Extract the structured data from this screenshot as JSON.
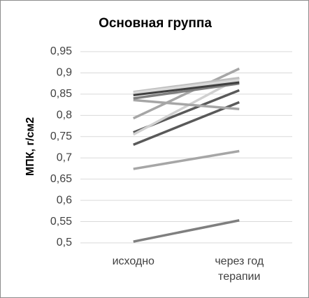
{
  "chart_data": {
    "type": "line",
    "title": "Основная группа",
    "y_label": "МПК, г/см2",
    "categories": [
      "исходно",
      "через год терапии"
    ],
    "series": [
      {
        "color": "#7f7f7f",
        "values": [
          0.503,
          0.553
        ]
      },
      {
        "color": "#a6a6a6",
        "values": [
          0.674,
          0.716
        ]
      },
      {
        "color": "#595959",
        "values": [
          0.731,
          0.831
        ]
      },
      {
        "color": "#595959",
        "values": [
          0.76,
          0.859
        ]
      },
      {
        "color": "#a6a6a6",
        "values": [
          0.793,
          0.91
        ]
      },
      {
        "color": "#d0d0d0",
        "values": [
          0.755,
          0.888
        ]
      },
      {
        "color": "#a6a6a6",
        "values": [
          0.836,
          0.815
        ]
      },
      {
        "color": "#7f7f7f",
        "values": [
          0.84,
          0.875
        ]
      },
      {
        "color": "#404040",
        "values": [
          0.848,
          0.878
        ]
      },
      {
        "color": "#bfbfbf",
        "values": [
          0.855,
          0.888
        ]
      },
      {
        "color": "#d9d9d9",
        "values": [
          0.853,
          0.883
        ]
      }
    ],
    "ylim": [
      0.5,
      0.95
    ],
    "yticks": [
      {
        "value": 0.5,
        "label": "0,5"
      },
      {
        "value": 0.55,
        "label": "0,55"
      },
      {
        "value": 0.6,
        "label": "0,6"
      },
      {
        "value": 0.65,
        "label": "0,65"
      },
      {
        "value": 0.7,
        "label": "0,7"
      },
      {
        "value": 0.75,
        "label": "0,75"
      },
      {
        "value": 0.8,
        "label": "0,8"
      },
      {
        "value": 0.85,
        "label": "0,85"
      },
      {
        "value": 0.9,
        "label": "0,9"
      },
      {
        "value": 0.95,
        "label": "0,95"
      }
    ],
    "grid": true
  }
}
